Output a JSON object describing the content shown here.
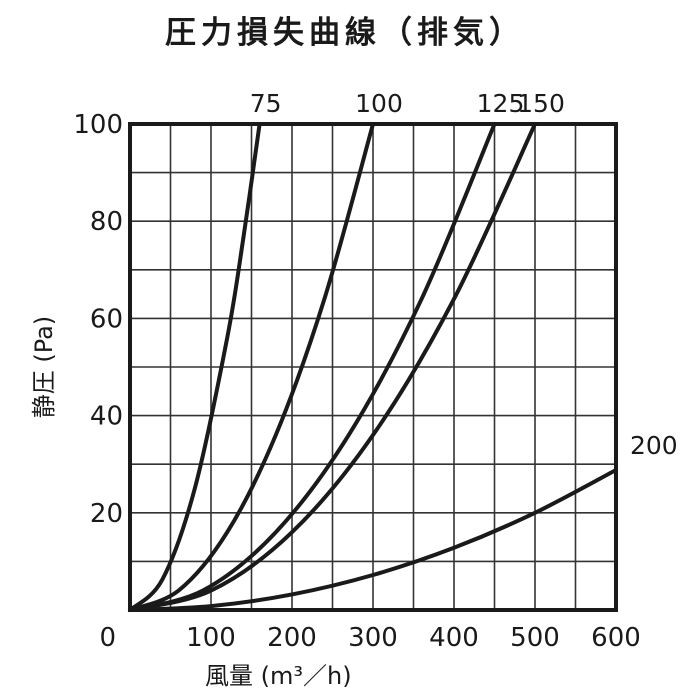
{
  "chart_data": {
    "type": "line",
    "title": "圧力損失曲線（排気）",
    "xlabel": "風量  (m³／h)",
    "ylabel": "静圧 (Pa)",
    "xlim": [
      0,
      600
    ],
    "ylim": [
      0,
      100
    ],
    "x_ticks": [
      0,
      100,
      200,
      300,
      400,
      500,
      600
    ],
    "y_ticks": [
      0,
      20,
      40,
      60,
      80,
      100
    ],
    "x_tick_labels": [
      "0",
      "100",
      "200",
      "300",
      "400",
      "500",
      "600"
    ],
    "y_tick_labels": [
      "",
      "20",
      "40",
      "60",
      "80",
      "100"
    ],
    "x_grid_step": 50,
    "y_grid_step": 10,
    "grid": true,
    "legend": "none",
    "series": [
      {
        "name": "75",
        "x": [
          0,
          40,
          80,
          120,
          140,
          160
        ],
        "y": [
          0,
          6.3,
          25,
          56,
          76.6,
          100
        ]
      },
      {
        "name": "100",
        "x": [
          0,
          60,
          120,
          180,
          240,
          300
        ],
        "y": [
          0,
          4,
          16,
          36,
          64,
          100
        ]
      },
      {
        "name": "125",
        "x": [
          0,
          90,
          180,
          270,
          360,
          450
        ],
        "y": [
          0,
          4,
          16,
          36,
          64,
          100
        ]
      },
      {
        "name": "150",
        "x": [
          0,
          100,
          200,
          300,
          400,
          500
        ],
        "y": [
          0,
          4,
          16,
          36,
          64,
          100
        ]
      },
      {
        "name": "200",
        "x": [
          0,
          100,
          200,
          300,
          400,
          500,
          600
        ],
        "y": [
          0,
          0.8,
          3.2,
          7.2,
          12.8,
          20,
          28.8
        ]
      }
    ]
  }
}
